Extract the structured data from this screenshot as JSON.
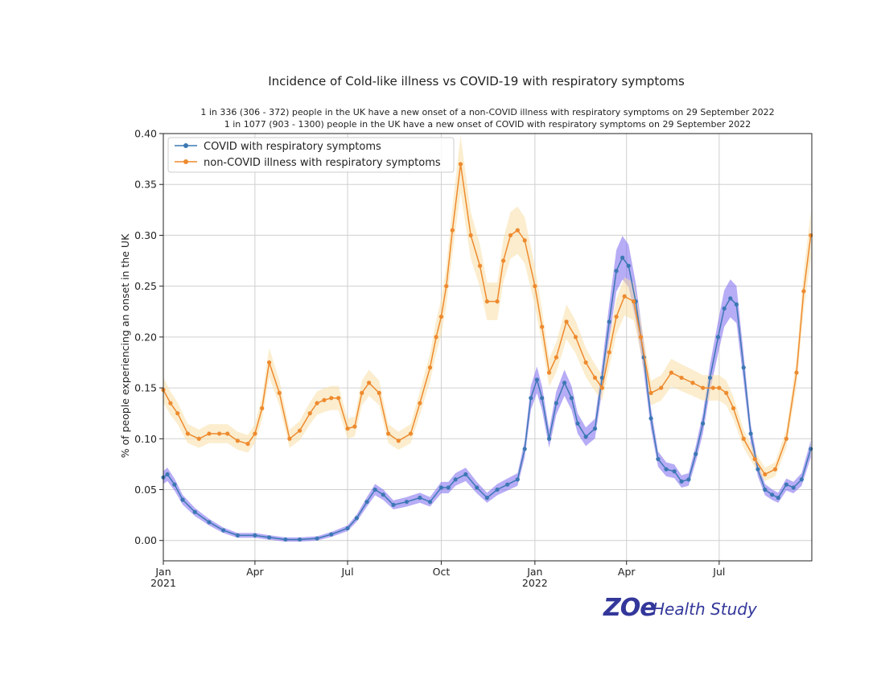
{
  "chart_data": {
    "type": "line",
    "title": "Incidence of Cold-like illness vs COVID-19 with respiratory symptoms",
    "subtitle_lines": [
      "1 in 336 (306 - 372) people in the UK have a new onset of a non-COVID illness with respiratory symptoms on 29 September 2022",
      "1 in 1077 (903 - 1300) people in the UK have a new onset of COVID with respiratory symptoms on 29 September 2022"
    ],
    "xlabel": "",
    "ylabel": "% of people experiencing an onset in the UK",
    "x_range": [
      "2021-01-01",
      "2022-09-30"
    ],
    "ylim": [
      -0.02,
      0.4
    ],
    "y_ticks": [
      0.0,
      0.05,
      0.1,
      0.15,
      0.2,
      0.25,
      0.3,
      0.35,
      0.4
    ],
    "y_tick_labels": [
      "0.00",
      "0.05",
      "0.10",
      "0.15",
      "0.20",
      "0.25",
      "0.30",
      "0.35",
      "0.40"
    ],
    "x_ticks": [
      {
        "date": "2021-01-01",
        "label": "Jan",
        "sublabel": "2021"
      },
      {
        "date": "2021-04-01",
        "label": "Apr",
        "sublabel": ""
      },
      {
        "date": "2021-07-01",
        "label": "Jul",
        "sublabel": ""
      },
      {
        "date": "2021-10-01",
        "label": "Oct",
        "sublabel": ""
      },
      {
        "date": "2022-01-01",
        "label": "Jan",
        "sublabel": "2022"
      },
      {
        "date": "2022-04-01",
        "label": "Apr",
        "sublabel": ""
      },
      {
        "date": "2022-07-01",
        "label": "Jul",
        "sublabel": ""
      }
    ],
    "grid": true,
    "legend_position": "top-left",
    "series": [
      {
        "name": "COVID with respiratory symptoms",
        "color": "#3c78b4",
        "band_color": "#7b68ee",
        "x": [
          "2021-01-01",
          "2021-01-05",
          "2021-01-12",
          "2021-01-20",
          "2021-02-01",
          "2021-02-15",
          "2021-03-01",
          "2021-03-15",
          "2021-04-01",
          "2021-04-15",
          "2021-05-01",
          "2021-05-15",
          "2021-06-01",
          "2021-06-15",
          "2021-07-01",
          "2021-07-10",
          "2021-07-20",
          "2021-07-28",
          "2021-08-05",
          "2021-08-15",
          "2021-08-28",
          "2021-09-10",
          "2021-09-20",
          "2021-10-01",
          "2021-10-08",
          "2021-10-15",
          "2021-10-25",
          "2021-11-05",
          "2021-11-15",
          "2021-11-25",
          "2021-12-05",
          "2021-12-15",
          "2021-12-22",
          "2021-12-28",
          "2022-01-03",
          "2022-01-08",
          "2022-01-15",
          "2022-01-22",
          "2022-01-30",
          "2022-02-06",
          "2022-02-12",
          "2022-02-20",
          "2022-03-01",
          "2022-03-08",
          "2022-03-15",
          "2022-03-22",
          "2022-03-28",
          "2022-04-03",
          "2022-04-10",
          "2022-04-18",
          "2022-04-25",
          "2022-05-02",
          "2022-05-10",
          "2022-05-18",
          "2022-05-25",
          "2022-06-01",
          "2022-06-08",
          "2022-06-15",
          "2022-06-22",
          "2022-06-30",
          "2022-07-06",
          "2022-07-12",
          "2022-07-18",
          "2022-07-25",
          "2022-08-01",
          "2022-08-08",
          "2022-08-15",
          "2022-08-22",
          "2022-08-28",
          "2022-09-05",
          "2022-09-12",
          "2022-09-20",
          "2022-09-29"
        ],
        "values": [
          0.062,
          0.065,
          0.055,
          0.04,
          0.028,
          0.018,
          0.01,
          0.005,
          0.005,
          0.003,
          0.001,
          0.001,
          0.002,
          0.006,
          0.012,
          0.022,
          0.038,
          0.05,
          0.045,
          0.035,
          0.038,
          0.042,
          0.038,
          0.052,
          0.052,
          0.06,
          0.065,
          0.052,
          0.042,
          0.05,
          0.055,
          0.06,
          0.09,
          0.14,
          0.158,
          0.14,
          0.1,
          0.135,
          0.155,
          0.14,
          0.115,
          0.102,
          0.11,
          0.16,
          0.215,
          0.265,
          0.278,
          0.27,
          0.235,
          0.18,
          0.12,
          0.08,
          0.07,
          0.068,
          0.058,
          0.06,
          0.085,
          0.115,
          0.16,
          0.2,
          0.228,
          0.238,
          0.232,
          0.17,
          0.105,
          0.07,
          0.05,
          0.045,
          0.042,
          0.055,
          0.052,
          0.06,
          0.09
        ]
      },
      {
        "name": "non-COVID illness with respiratory symptoms",
        "color": "#ee8a2e",
        "band_color": "#f7dfa6",
        "x": [
          "2021-01-01",
          "2021-01-08",
          "2021-01-15",
          "2021-01-25",
          "2021-02-05",
          "2021-02-15",
          "2021-02-25",
          "2021-03-05",
          "2021-03-15",
          "2021-03-25",
          "2021-04-01",
          "2021-04-08",
          "2021-04-15",
          "2021-04-25",
          "2021-05-05",
          "2021-05-15",
          "2021-05-25",
          "2021-06-01",
          "2021-06-08",
          "2021-06-15",
          "2021-06-22",
          "2021-07-01",
          "2021-07-08",
          "2021-07-15",
          "2021-07-22",
          "2021-08-01",
          "2021-08-10",
          "2021-08-20",
          "2021-09-01",
          "2021-09-10",
          "2021-09-20",
          "2021-09-26",
          "2021-10-01",
          "2021-10-06",
          "2021-10-12",
          "2021-10-20",
          "2021-10-30",
          "2021-11-08",
          "2021-11-15",
          "2021-11-25",
          "2021-12-01",
          "2021-12-08",
          "2021-12-15",
          "2021-12-22",
          "2022-01-01",
          "2022-01-08",
          "2022-01-15",
          "2022-01-22",
          "2022-02-01",
          "2022-02-10",
          "2022-02-20",
          "2022-03-01",
          "2022-03-08",
          "2022-03-15",
          "2022-03-22",
          "2022-03-30",
          "2022-04-08",
          "2022-04-15",
          "2022-04-25",
          "2022-05-05",
          "2022-05-15",
          "2022-05-25",
          "2022-06-05",
          "2022-06-15",
          "2022-06-25",
          "2022-07-01",
          "2022-07-08",
          "2022-07-15",
          "2022-07-25",
          "2022-08-05",
          "2022-08-15",
          "2022-08-25",
          "2022-09-05",
          "2022-09-15",
          "2022-09-22",
          "2022-09-29"
        ],
        "values": [
          0.148,
          0.135,
          0.125,
          0.105,
          0.1,
          0.105,
          0.105,
          0.105,
          0.098,
          0.095,
          0.105,
          0.13,
          0.175,
          0.145,
          0.1,
          0.108,
          0.125,
          0.135,
          0.138,
          0.14,
          0.14,
          0.11,
          0.112,
          0.145,
          0.155,
          0.145,
          0.105,
          0.098,
          0.105,
          0.135,
          0.17,
          0.2,
          0.22,
          0.25,
          0.305,
          0.37,
          0.3,
          0.27,
          0.235,
          0.235,
          0.275,
          0.3,
          0.305,
          0.295,
          0.25,
          0.21,
          0.165,
          0.18,
          0.215,
          0.2,
          0.175,
          0.16,
          0.15,
          0.185,
          0.22,
          0.24,
          0.235,
          0.2,
          0.145,
          0.15,
          0.165,
          0.16,
          0.155,
          0.15,
          0.15,
          0.15,
          0.145,
          0.13,
          0.1,
          0.08,
          0.065,
          0.07,
          0.1,
          0.165,
          0.245,
          0.3
        ]
      }
    ]
  },
  "branding": {
    "logo_mark": "ZOe",
    "logo_text": "Health Study",
    "color": "#33379a"
  }
}
